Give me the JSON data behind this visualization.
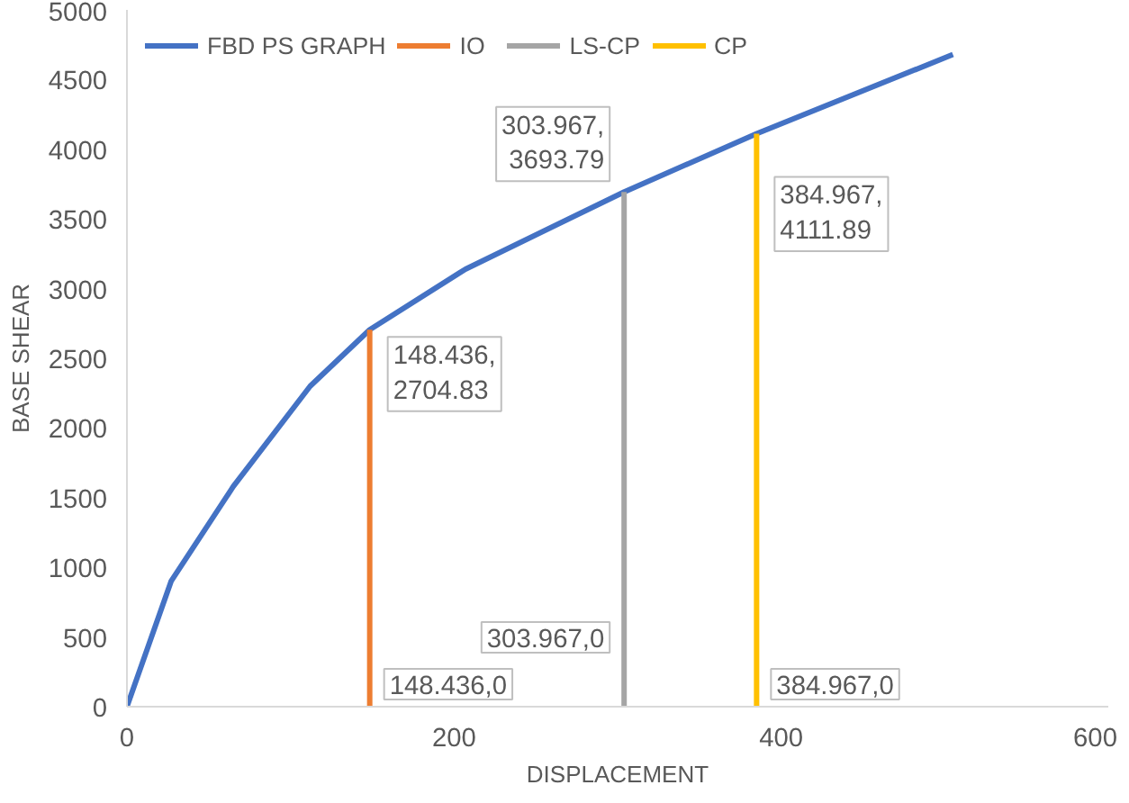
{
  "chart_data": {
    "type": "line",
    "xlabel": "DISPLACEMENT",
    "ylabel": "BASE SHEAR",
    "series": [
      {
        "name": "FBD PS GRAPH",
        "color": "#4472c4",
        "x": [
          0,
          27,
          65,
          112,
          148.436,
          207,
          303.967,
          384.967,
          505
        ],
        "values": [
          0,
          900,
          1580,
          2300,
          2704.83,
          3140,
          3693.79,
          4111.89,
          4680
        ]
      },
      {
        "name": "IO",
        "color": "#ed7d31",
        "x": [
          148.436,
          148.436
        ],
        "values": [
          0,
          2704.83
        ]
      },
      {
        "name": "LS-CP",
        "color": "#a5a5a5",
        "x": [
          303.967,
          303.967
        ],
        "values": [
          0,
          3693.79
        ]
      },
      {
        "name": "CP",
        "color": "#ffc000",
        "x": [
          384.967,
          384.967
        ],
        "values": [
          0,
          4111.89
        ]
      }
    ],
    "annotations": [
      {
        "text": "148.436,0",
        "x": 148.436,
        "y": 0
      },
      {
        "text": "148.436,\n2704.83",
        "x": 148.436,
        "y": 2704.83
      },
      {
        "text": "303.967,0",
        "x": 303.967,
        "y": 0
      },
      {
        "text": "303.967,\n3693.79",
        "x": 303.967,
        "y": 3693.79
      },
      {
        "text": "384.967,0",
        "x": 384.967,
        "y": 0
      },
      {
        "text": "384.967,\n4111.89",
        "x": 384.967,
        "y": 4111.89
      }
    ],
    "xlim": [
      0,
      600
    ],
    "xticks": [
      0,
      200,
      400,
      600
    ],
    "ylim": [
      0,
      5000
    ],
    "yticks": [
      0,
      500,
      1000,
      1500,
      2000,
      2500,
      3000,
      3500,
      4000,
      4500,
      5000
    ],
    "grid": false,
    "legend": "top left",
    "marker": "none",
    "line_style": "solid"
  }
}
